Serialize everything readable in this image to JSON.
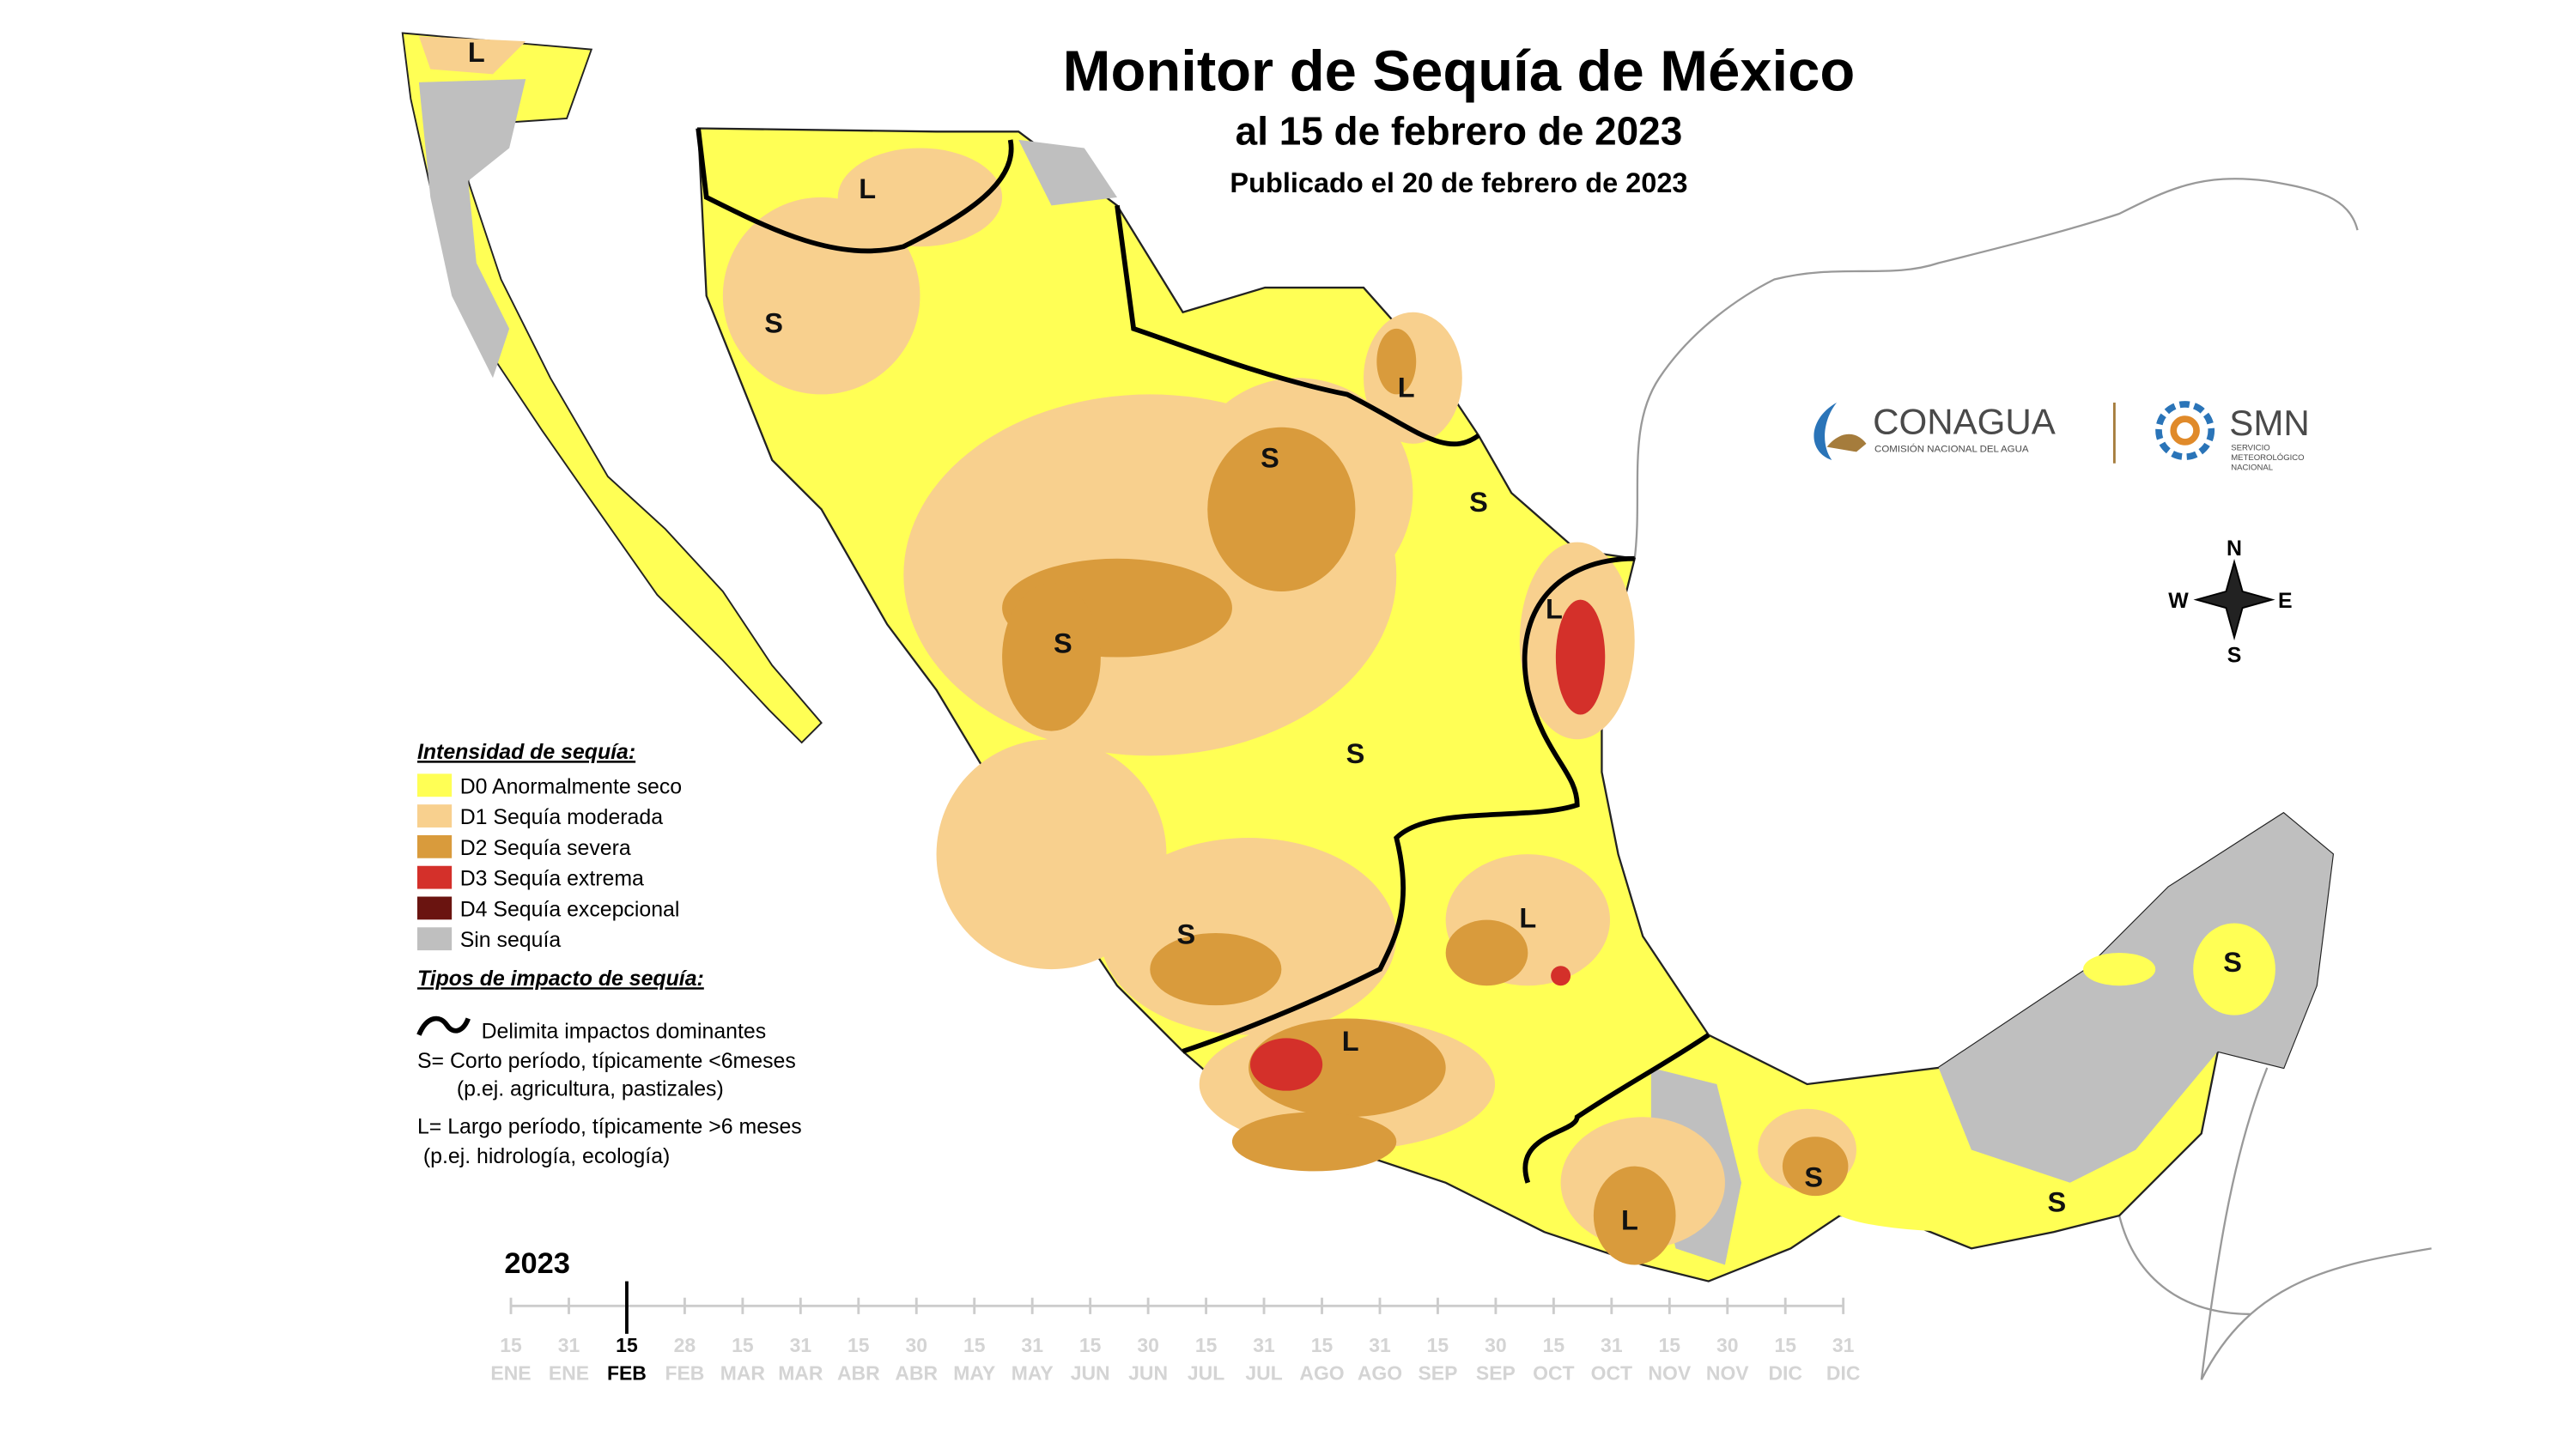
{
  "header": {
    "title": "Monitor de Sequía de México",
    "subtitle": "al 15 de febrero de 2023",
    "published": "Publicado el 20 de febrero de 2023"
  },
  "logos": {
    "conagua": "CONAGUA",
    "conagua_sub": "COMISIÓN NACIONAL DEL AGUA",
    "smn": "SMN",
    "smn_sub_1": "SERVICIO",
    "smn_sub_2": "METEOROLÓGICO",
    "smn_sub_3": "NACIONAL"
  },
  "compass": {
    "n": "N",
    "s": "S",
    "e": "E",
    "w": "W"
  },
  "legend": {
    "title": "Intensidad de sequía:",
    "items": [
      {
        "label": "D0 Anormalmente seco",
        "color": "#ffff55"
      },
      {
        "label": "D1 Sequía moderada",
        "color": "#f8d08e"
      },
      {
        "label": "D2 Sequía severa",
        "color": "#d99b3c"
      },
      {
        "label": "D3 Sequía extrema",
        "color": "#d4302a"
      },
      {
        "label": "D4 Sequía excepcional",
        "color": "#6a1410"
      },
      {
        "label": "Sin sequía",
        "color": "#bfbfbf"
      }
    ],
    "impact_title": "Tipos de impacto de sequía:",
    "impact_lines": [
      "Delimita impactos dominantes",
      "S= Corto período, típicamente <6meses",
      "(p.ej. agricultura, pastizales)",
      "L= Largo período, típicamente >6 meses",
      " (p.ej. hidrología, ecología)"
    ]
  },
  "map_labels": [
    "L",
    "L",
    "S",
    "L",
    "S",
    "S",
    "L",
    "S",
    "S",
    "L",
    "S",
    "L",
    "S",
    "L",
    "S",
    "S"
  ],
  "timeline": {
    "year": "2023",
    "current": 2,
    "ticks": [
      {
        "day": 15,
        "month": "ENE"
      },
      {
        "day": 31,
        "month": "ENE"
      },
      {
        "day": 15,
        "month": "FEB"
      },
      {
        "day": 28,
        "month": "FEB"
      },
      {
        "day": 15,
        "month": "MAR"
      },
      {
        "day": 31,
        "month": "MAR"
      },
      {
        "day": 15,
        "month": "ABR"
      },
      {
        "day": 30,
        "month": "ABR"
      },
      {
        "day": 15,
        "month": "MAY"
      },
      {
        "day": 31,
        "month": "MAY"
      },
      {
        "day": 15,
        "month": "JUN"
      },
      {
        "day": 30,
        "month": "JUN"
      },
      {
        "day": 15,
        "month": "JUL"
      },
      {
        "day": 31,
        "month": "JUL"
      },
      {
        "day": 15,
        "month": "AGO"
      },
      {
        "day": 31,
        "month": "AGO"
      },
      {
        "day": 15,
        "month": "SEP"
      },
      {
        "day": 30,
        "month": "SEP"
      },
      {
        "day": 15,
        "month": "OCT"
      },
      {
        "day": 31,
        "month": "OCT"
      },
      {
        "day": 15,
        "month": "NOV"
      },
      {
        "day": 30,
        "month": "NOV"
      },
      {
        "day": 15,
        "month": "DIC"
      },
      {
        "day": 31,
        "month": "DIC"
      }
    ]
  }
}
